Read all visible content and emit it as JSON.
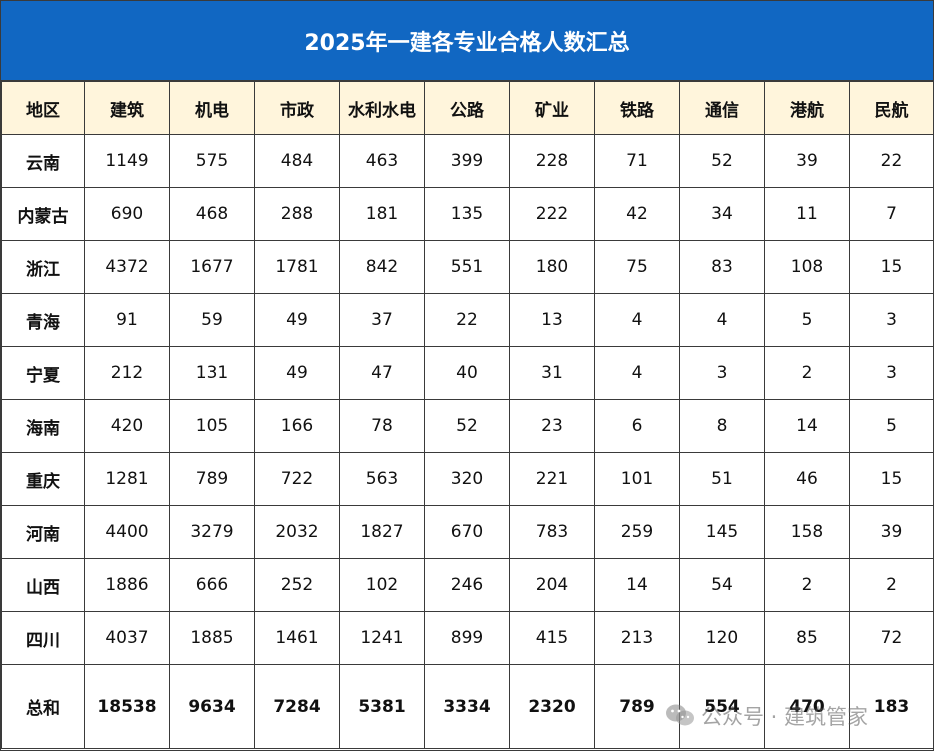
{
  "title": "2025年一建各专业合格人数汇总",
  "headers": [
    "地区",
    "建筑",
    "机电",
    "市政",
    "水利水电",
    "公路",
    "矿业",
    "铁路",
    "通信",
    "港航",
    "民航"
  ],
  "rows": [
    [
      "云南",
      "1149",
      "575",
      "484",
      "463",
      "399",
      "228",
      "71",
      "52",
      "39",
      "22"
    ],
    [
      "内蒙古",
      "690",
      "468",
      "288",
      "181",
      "135",
      "222",
      "42",
      "34",
      "11",
      "7"
    ],
    [
      "浙江",
      "4372",
      "1677",
      "1781",
      "842",
      "551",
      "180",
      "75",
      "83",
      "108",
      "15"
    ],
    [
      "青海",
      "91",
      "59",
      "49",
      "37",
      "22",
      "13",
      "4",
      "4",
      "5",
      "3"
    ],
    [
      "宁夏",
      "212",
      "131",
      "49",
      "47",
      "40",
      "31",
      "4",
      "3",
      "2",
      "3"
    ],
    [
      "海南",
      "420",
      "105",
      "166",
      "78",
      "52",
      "23",
      "6",
      "8",
      "14",
      "5"
    ],
    [
      "重庆",
      "1281",
      "789",
      "722",
      "563",
      "320",
      "221",
      "101",
      "51",
      "46",
      "15"
    ],
    [
      "河南",
      "4400",
      "3279",
      "2032",
      "1827",
      "670",
      "783",
      "259",
      "145",
      "158",
      "39"
    ],
    [
      "山西",
      "1886",
      "666",
      "252",
      "102",
      "246",
      "204",
      "14",
      "54",
      "2",
      "2"
    ],
    [
      "四川",
      "4037",
      "1885",
      "1461",
      "1241",
      "899",
      "415",
      "213",
      "120",
      "85",
      "72"
    ]
  ],
  "totals": [
    "总和",
    "18538",
    "9634",
    "7284",
    "5381",
    "3334",
    "2320",
    "789",
    "554",
    "470",
    "183"
  ],
  "watermark": {
    "text": "公众号 · 建筑管家",
    "icon": "wechat-icon"
  },
  "colors": {
    "title_bg": "#1167c2",
    "title_text": "#ffffff",
    "header_bg": "#fff5dc",
    "grid_line": "#3a3a3a"
  }
}
